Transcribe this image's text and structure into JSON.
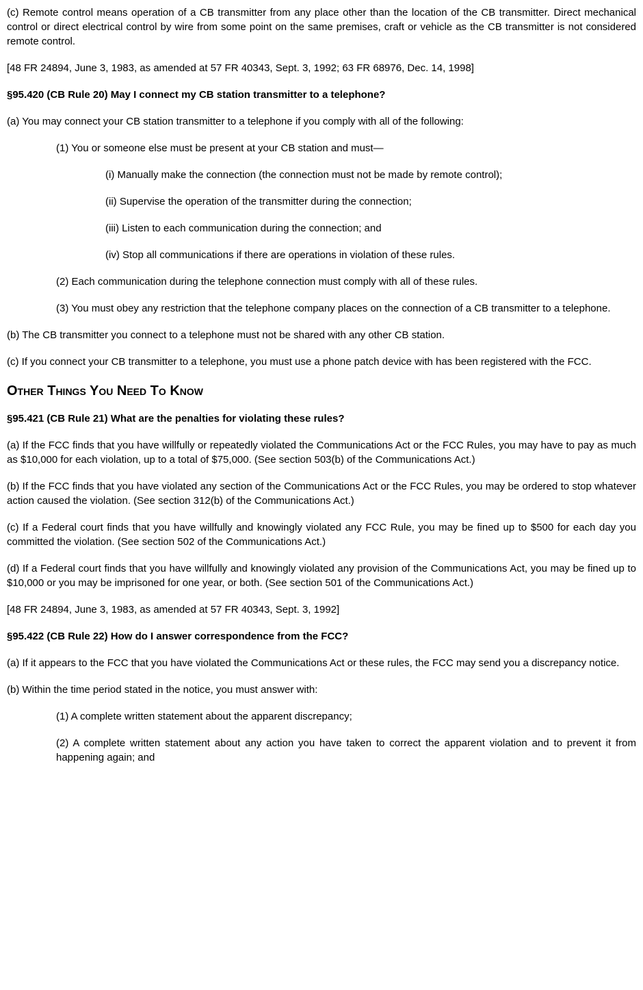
{
  "p1": "(c) Remote control means operation of a CB transmitter from any place other than the location of the CB transmitter. Direct mechanical control or direct electrical control by wire from some point on the same premises, craft or vehicle as the CB transmitter is not considered remote control.",
  "cite1": "[48 FR 24894, June 3, 1983, as amended at 57 FR 40343, Sept. 3, 1992; 63 FR 68976, Dec. 14, 1998]",
  "s95_420_heading": "§95.420   (CB Rule 20) May I connect my CB station transmitter to a telephone?",
  "s95_420_a": "(a) You may connect your CB station transmitter to a telephone if you comply with all of the following:",
  "s95_420_a1": "(1) You or someone else must be present at your CB station and must—",
  "s95_420_a1_i": "(i) Manually make the connection (the connection must not be made by remote control);",
  "s95_420_a1_ii": "(ii) Supervise the operation of the transmitter during the connection;",
  "s95_420_a1_iii": "(iii) Listen to each communication during the connection; and",
  "s95_420_a1_iv": "(iv) Stop all communications if there are operations in violation of these rules.",
  "s95_420_a2": "(2) Each communication during the telephone connection must comply with all of these rules.",
  "s95_420_a3": "(3) You must obey any restriction that the telephone company places on the connection of a CB transmitter to a telephone.",
  "s95_420_b": "(b) The CB transmitter you connect to a telephone must not be shared with any other CB station.",
  "s95_420_c": "(c) If you connect your CB transmitter to a telephone, you must use a phone patch device with has been registered with the FCC.",
  "major_heading": "Other Things You Need To Know",
  "s95_421_heading": "§95.421   (CB Rule 21) What are the penalties for violating these rules?",
  "s95_421_a": "(a) If the FCC finds that you have willfully or repeatedly violated the Communications Act or the FCC Rules, you may have to pay as much as $10,000 for each violation, up to a total of $75,000. (See section 503(b) of the Communications Act.)",
  "s95_421_b": "(b) If the FCC finds that you have violated any section of the Communications Act or the FCC Rules, you may be ordered to stop whatever action caused the violation. (See section 312(b) of the Communications Act.)",
  "s95_421_c": "(c) If a Federal court finds that you have willfully and knowingly violated any FCC Rule, you may be fined up to $500 for each day you committed the violation. (See section 502 of the Communications Act.)",
  "s95_421_d": "(d) If a Federal court finds that you have willfully and knowingly violated any provision of the Communications Act, you may be fined up to $10,000 or you may be imprisoned for one year, or both. (See section 501 of the Communications Act.)",
  "cite2": "[48 FR 24894, June 3, 1983, as amended at 57 FR 40343, Sept. 3, 1992]",
  "s95_422_heading": "§95.422   (CB Rule 22) How do I answer correspondence from the FCC?",
  "s95_422_a": "(a) If it appears to the FCC that you have violated the Communications Act or these rules, the FCC may send you a discrepancy notice.",
  "s95_422_b": "(b) Within the time period stated in the notice, you must answer with:",
  "s95_422_b1": "(1) A complete written statement about the apparent discrepancy;",
  "s95_422_b2": "(2) A complete written statement about any action you have taken to correct the apparent violation and to prevent it from happening again; and"
}
